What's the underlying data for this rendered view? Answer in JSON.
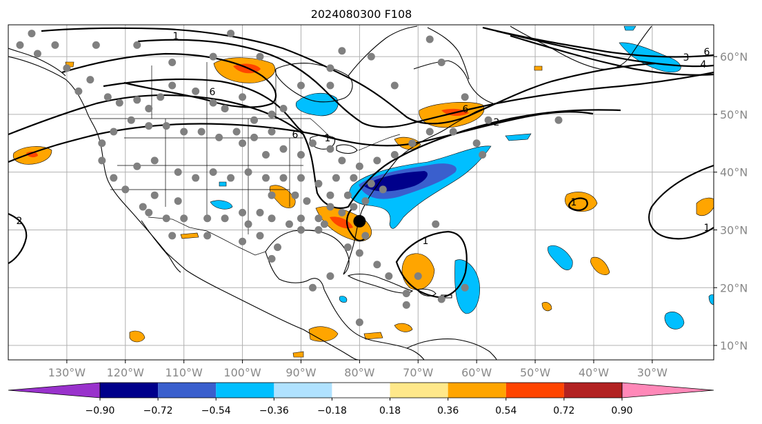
{
  "title": "2024080300 F108",
  "longitude_labels": [
    "130°W",
    "120°W",
    "110°W",
    "100°W",
    "90°W",
    "80°W",
    "70°W",
    "60°W",
    "50°W",
    "40°W",
    "30°W"
  ],
  "latitude_labels": [
    "60°N",
    "50°N",
    "40°N",
    "30°N",
    "20°N",
    "10°N"
  ],
  "colorbar": {
    "tick_labels": [
      "−0.90",
      "−0.72",
      "−0.54",
      "−0.36",
      "−0.18",
      "0.18",
      "0.36",
      "0.54",
      "0.72",
      "0.90"
    ],
    "colors": [
      "#9932cc",
      "#00008b",
      "#3a5fcd",
      "#00bfff",
      "#b0e2ff",
      "#ffffff",
      "#ffe88a",
      "#ffa500",
      "#ff4500",
      "#b22222",
      "#ff88b8"
    ]
  },
  "contour_labels": [
    "1",
    "6",
    "6",
    "6",
    "4",
    "2",
    "1",
    "1",
    "1",
    "3",
    "6",
    "4",
    "2",
    "1"
  ],
  "storm_marker": {
    "lon": -80,
    "lat": 31.5
  },
  "colors": {
    "grid": "#b0b0b0",
    "station": "#808080",
    "tick_label": "#888888"
  }
}
